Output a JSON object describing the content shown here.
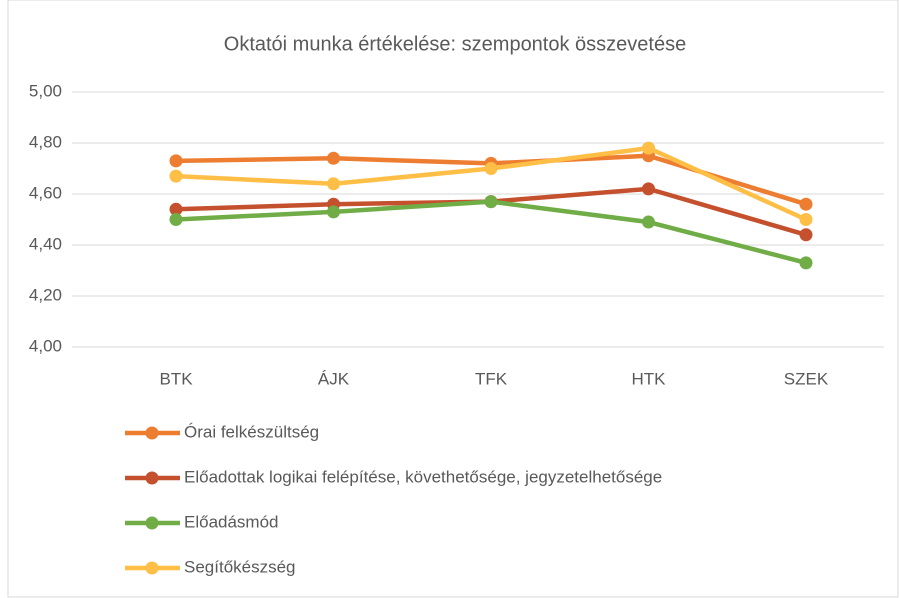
{
  "chart_data": {
    "type": "line",
    "title": "Oktatói munka értékelése: szempontok összevetése",
    "categories": [
      "BTK",
      "ÁJK",
      "TFK",
      "HTK",
      "SZEK"
    ],
    "series": [
      {
        "name": "Órai felkészültség",
        "color": "#ed7d31",
        "values": [
          4.73,
          4.74,
          4.72,
          4.75,
          4.56
        ]
      },
      {
        "name": "Előadottak logikai felépítése, követhetősége, jegyzetelhetősége",
        "color": "#c5502d",
        "values": [
          4.54,
          4.56,
          4.57,
          4.62,
          4.44
        ]
      },
      {
        "name": "Előadásmód",
        "color": "#70ad47",
        "values": [
          4.5,
          4.53,
          4.57,
          4.49,
          4.33
        ]
      },
      {
        "name": "Segítőkészség",
        "color": "#ffbf47",
        "values": [
          4.67,
          4.64,
          4.7,
          4.78,
          4.5
        ]
      }
    ],
    "ylim": [
      4.0,
      5.0
    ],
    "yticks": [
      {
        "value": 4.0,
        "label": "4,00"
      },
      {
        "value": 4.2,
        "label": "4,20"
      },
      {
        "value": 4.4,
        "label": "4,40"
      },
      {
        "value": 4.6,
        "label": "4,60"
      },
      {
        "value": 4.8,
        "label": "4,80"
      },
      {
        "value": 5.0,
        "label": "5,00"
      }
    ],
    "grid": true,
    "legend": "bottom"
  }
}
